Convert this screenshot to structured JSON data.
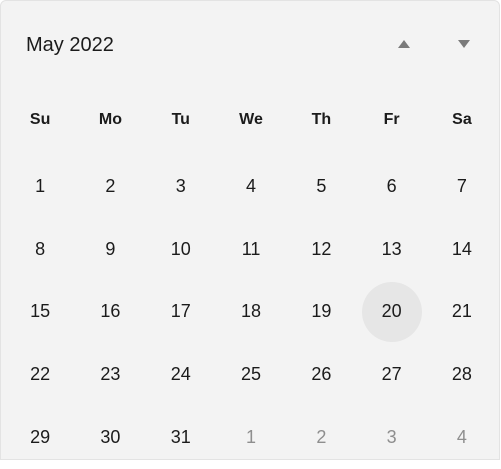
{
  "calendar": {
    "month_title": "May 2022",
    "weekdays": [
      "Su",
      "Mo",
      "Tu",
      "We",
      "Th",
      "Fr",
      "Sa"
    ],
    "days": [
      {
        "label": "1",
        "muted": false,
        "highlighted": false
      },
      {
        "label": "2",
        "muted": false,
        "highlighted": false
      },
      {
        "label": "3",
        "muted": false,
        "highlighted": false
      },
      {
        "label": "4",
        "muted": false,
        "highlighted": false
      },
      {
        "label": "5",
        "muted": false,
        "highlighted": false
      },
      {
        "label": "6",
        "muted": false,
        "highlighted": false
      },
      {
        "label": "7",
        "muted": false,
        "highlighted": false
      },
      {
        "label": "8",
        "muted": false,
        "highlighted": false
      },
      {
        "label": "9",
        "muted": false,
        "highlighted": false
      },
      {
        "label": "10",
        "muted": false,
        "highlighted": false
      },
      {
        "label": "11",
        "muted": false,
        "highlighted": false
      },
      {
        "label": "12",
        "muted": false,
        "highlighted": false
      },
      {
        "label": "13",
        "muted": false,
        "highlighted": false
      },
      {
        "label": "14",
        "muted": false,
        "highlighted": false
      },
      {
        "label": "15",
        "muted": false,
        "highlighted": false
      },
      {
        "label": "16",
        "muted": false,
        "highlighted": false
      },
      {
        "label": "17",
        "muted": false,
        "highlighted": false
      },
      {
        "label": "18",
        "muted": false,
        "highlighted": false
      },
      {
        "label": "19",
        "muted": false,
        "highlighted": false
      },
      {
        "label": "20",
        "muted": false,
        "highlighted": true
      },
      {
        "label": "21",
        "muted": false,
        "highlighted": false
      },
      {
        "label": "22",
        "muted": false,
        "highlighted": false
      },
      {
        "label": "23",
        "muted": false,
        "highlighted": false
      },
      {
        "label": "24",
        "muted": false,
        "highlighted": false
      },
      {
        "label": "25",
        "muted": false,
        "highlighted": false
      },
      {
        "label": "26",
        "muted": false,
        "highlighted": false
      },
      {
        "label": "27",
        "muted": false,
        "highlighted": false
      },
      {
        "label": "28",
        "muted": false,
        "highlighted": false
      },
      {
        "label": "29",
        "muted": false,
        "highlighted": false
      },
      {
        "label": "30",
        "muted": false,
        "highlighted": false
      },
      {
        "label": "31",
        "muted": false,
        "highlighted": false
      },
      {
        "label": "1",
        "muted": true,
        "highlighted": false
      },
      {
        "label": "2",
        "muted": true,
        "highlighted": false
      },
      {
        "label": "3",
        "muted": true,
        "highlighted": false
      },
      {
        "label": "4",
        "muted": true,
        "highlighted": false
      }
    ]
  },
  "navigation": {
    "previous_icon": "triangle-up-icon",
    "next_icon": "triangle-down-icon"
  },
  "colors": {
    "background": "#f3f3f3",
    "text": "#1b1b1b",
    "muted_text": "#8e8e8e",
    "highlight": "#e6e6e6",
    "nav_icon": "#7a7a7a"
  }
}
